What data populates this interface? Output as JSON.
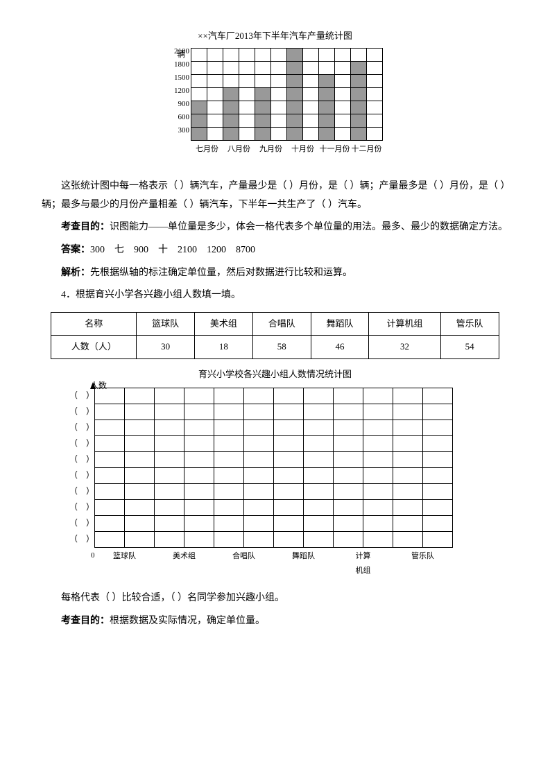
{
  "chart1": {
    "type": "bar",
    "title": "××汽车厂2013年下半年汽车产量统计图",
    "ylabel": "辆",
    "yticks": [
      "2100",
      "1800",
      "1500",
      "1200",
      "900",
      "600",
      "300"
    ],
    "categories": [
      "七月份",
      "八月份",
      "九月份",
      "十月份",
      "十一月份",
      "十二月份"
    ],
    "values": [
      900,
      1200,
      1200,
      2100,
      1500,
      1800
    ],
    "unit": 300,
    "bar_color": "#999999",
    "grid_color": "#000000",
    "background_color": "#ffffff"
  },
  "q3_text": "这张统计图中每一格表示（ ）辆汽车，产量最少是（ ）月份，是（ ）辆；产量最多是（ ）月份，是（ ）辆；最多与最少的月份产量相差（ ）辆汽车，下半年一共生产了（ ）汽车。",
  "q3_purpose_label": "考查目的：",
  "q3_purpose": "识图能力——单位量是多少，体会一格代表多个单位量的用法。最多、最少的数据确定方法。",
  "q3_answer_label": "答案：",
  "q3_answer": "300　七　900　十　2100　1200　8700",
  "q3_analysis_label": "解析：",
  "q3_analysis": "先根据纵轴的标注确定单位量，然后对数据进行比较和运算。",
  "q4_intro": "4．根据育兴小学各兴趣小组人数填一填。",
  "table": {
    "headers": [
      "名称",
      "篮球队",
      "美术组",
      "合唱队",
      "舞蹈队",
      "计算机组",
      "管乐队"
    ],
    "row_label": "人数（人）",
    "values": [
      30,
      18,
      58,
      46,
      32,
      54
    ]
  },
  "chart2": {
    "type": "bar",
    "title": "育兴小学校各兴趣小组人数情况统计图",
    "ylabel": "人数",
    "rows": 10,
    "cols": 12,
    "paren": "（　）",
    "zero": "0",
    "categories": [
      "篮球队",
      "美术组",
      "合唱队",
      "舞蹈队",
      "计算\n机组",
      "管乐队"
    ],
    "grid_color": "#000000",
    "background_color": "#ffffff"
  },
  "q4_text": "每格代表（ ）比较合适，（ ）名同学参加兴趣小组。",
  "q4_purpose_label": "考查目的：",
  "q4_purpose": "根据数据及实际情况，确定单位量。"
}
